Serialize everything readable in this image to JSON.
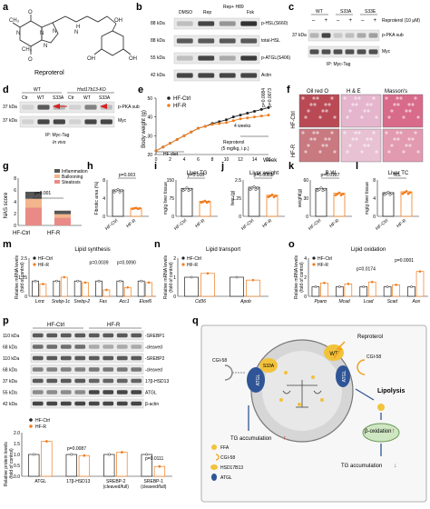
{
  "panel_letters": [
    "a",
    "b",
    "c",
    "d",
    "e",
    "f",
    "g",
    "h",
    "i",
    "j",
    "k",
    "l",
    "m",
    "n",
    "o",
    "p",
    "q"
  ],
  "colors": {
    "ctrl": "#222222",
    "treat": "#f07d1e",
    "steatosis": "#e98a86",
    "ballooning": "#f3b58c",
    "inflammation": "#555555",
    "ihc_red": "#c6545f",
    "he_pink": "#e6b7cf",
    "masson": "#d86a8a",
    "cell": "#d6d6d6"
  },
  "panel_a": {
    "compound_name": "Reproterol"
  },
  "panel_b": {
    "conditions": [
      "DMSO",
      "Rep",
      "Rep+\nH89",
      "Fsk"
    ],
    "rows": [
      {
        "kda": "88 kDa",
        "label": "p-HSL(S660)"
      },
      {
        "kda": "88 kDa",
        "label": "total-HSL"
      },
      {
        "kda": "55 kDa",
        "label": "p-ATGL(S406)"
      },
      {
        "kda": "42 kDa",
        "label": "Actin"
      }
    ]
  },
  "panel_c": {
    "groups": [
      "WT",
      "S33A",
      "S33E"
    ],
    "treatment_signs": [
      "–",
      "+",
      "–",
      "+",
      "–",
      "+"
    ],
    "treatment_label": "Reproterol (10 μM)",
    "rows": [
      {
        "kda": "37 kDa",
        "label": "p-PKA sub"
      },
      {
        "kda": "",
        "label": "Myc"
      }
    ],
    "footer": "IP: Myc-Tag"
  },
  "panel_d": {
    "genotypes": [
      "WT",
      "Hsd17b13-KO"
    ],
    "lanes": [
      "Ctr",
      "WT",
      "S33A",
      "Ctr",
      "WT",
      "S33A"
    ],
    "rows": [
      {
        "kda": "37 kDa",
        "label": "p-PKA sub"
      },
      {
        "kda": "37 kDa",
        "label": "Myc"
      }
    ],
    "footer": "IP: Myc-Tag",
    "footer2": "In vivo"
  },
  "panel_e": {
    "ylabel": "Body weight (g)",
    "xlabel": "Week",
    "legend": [
      "HF-Ctrl",
      "HF-R"
    ],
    "pvalues": [
      "p=0.0084",
      "p=0.0073"
    ],
    "annotation_weeks": "4 weeks",
    "annotation_drug": "Reproterol",
    "annotation_dose": "(5 mg/kg, i.p.)",
    "diet_label": "HF diet"
  },
  "panel_f": {
    "columns": [
      "Oil red O",
      "H & E",
      "Masson's"
    ],
    "rows": [
      "HF-Ctrl",
      "HF-R"
    ]
  },
  "panel_g": {
    "ylabel": "NAS score",
    "legend": [
      "Inflammation",
      "Ballooning",
      "Steatosis"
    ],
    "pvalue": "p=0.001",
    "groups": [
      "HF-Ctrl",
      "HF-R"
    ]
  },
  "panel_h": {
    "ylabel": "Fibrotic area (%)",
    "pvalue": "p=0.003",
    "groups": [
      "HF-Ctrl",
      "HF-R"
    ]
  },
  "panel_i": {
    "title": "Liver TG",
    "ylabel": "mg/g liver tissue",
    "pvalue": "p=0.008",
    "groups": [
      "HF-Ctrl",
      "HF-R"
    ]
  },
  "panel_j": {
    "title": "Liver weight",
    "ylabel": "liver (g)",
    "pvalue": "p=0.0083",
    "groups": [
      "HF-Ctrl",
      "HF-R"
    ]
  },
  "panel_k": {
    "title": "B.W.",
    "ylabel": "weight(g)",
    "pvalue": "p=0.0187",
    "groups": [
      "HF-Ctrl",
      "HF-R"
    ]
  },
  "panel_l": {
    "title": "Liver TC",
    "ylabel": "mg/g liver tissue",
    "pvalue": "NS.",
    "groups": [
      "HF-Ctrl",
      "HF-R"
    ]
  },
  "panel_m": {
    "title": "Lipid synthesis",
    "ylabel": "Relative mRNA levels\n(fold of control)",
    "legend": [
      "HF-Ctrl",
      "HF-R"
    ],
    "genes": [
      "Lxrα",
      "Srebp-1c",
      "Srebp-2",
      "Fas",
      "Acc1",
      "Elovl6"
    ],
    "pvalues": [
      "p=0.0039",
      "p=0.0090"
    ]
  },
  "panel_n": {
    "title": "Lipid transport",
    "ylabel": "Relative mRNA levels\n(fold of control)",
    "legend": [
      "HF-Ctrl",
      "HF-R"
    ],
    "genes": [
      "Cd36",
      "Apob"
    ]
  },
  "panel_o": {
    "title": "Lipid oxidation",
    "ylabel": "Relative mRNA levels\n(fold of control)",
    "legend": [
      "HF-Ctrl",
      "HF-R"
    ],
    "genes": [
      "Pparα",
      "Mcad",
      "Lcad",
      "Scad",
      "Aox"
    ],
    "pvalues": [
      "p=0.0174",
      "p=0.0001"
    ]
  },
  "panel_p": {
    "groups": [
      "HF-Ctrl",
      "HF-R"
    ],
    "rows": [
      {
        "kda": "110 kDa",
        "label": "-SREBP1"
      },
      {
        "kda": "68 kDa",
        "label": "-cleaved"
      },
      {
        "kda": "110 kDa",
        "label": "-SREBP2"
      },
      {
        "kda": "68 kDa",
        "label": "-cleaved"
      },
      {
        "kda": "37 kDa",
        "label": "17β-HSD13"
      },
      {
        "kda": "55 kDa",
        "label": "ATGL"
      },
      {
        "kda": "42 kDa",
        "label": "β-actin"
      }
    ],
    "legend": [
      "HF-Ctrl",
      "HF-R"
    ],
    "ylabel": "Relative protein levels\n(fold of control)",
    "categories": [
      "ATGL",
      "17β-HSD13",
      "SREBP-2\n(cleaved/full)",
      "SREBP-1\n(cleaved/full)"
    ],
    "pvalues": [
      "p=0.0087",
      "p=0.0111"
    ]
  },
  "panel_q": {
    "labels": {
      "reproterol": "Reproterol",
      "cgi58_left": "CGI-58",
      "cgi58_right": "CGI-58",
      "atgl_left": "ATGL",
      "s33a": "S33A",
      "wt": "WT",
      "atgl_right": "ATGL",
      "lipolysis": "Lipolysis",
      "tg_up": "TG accumulation",
      "beta_ox": "β-oxidation",
      "tg_down": "TG accumulation",
      "up_arrow": "↑",
      "down_arrow": "↓"
    },
    "legend": [
      "FFA",
      "CGI-58",
      "HSD17B13",
      "ATGL"
    ]
  },
  "chart_data": [
    {
      "type": "line",
      "panel": "e",
      "ylabel": "Body weight (g)",
      "xlabel": "Week",
      "x": [
        0,
        1,
        2,
        3,
        4,
        5,
        6,
        7,
        8,
        9,
        10,
        11,
        12,
        13,
        14,
        15,
        16
      ],
      "xlim": [
        0,
        16
      ],
      "ylim": [
        20,
        50
      ],
      "series": [
        {
          "name": "HF-Ctrl",
          "values": [
            22,
            24,
            26,
            28,
            30,
            32,
            34,
            35,
            36.5,
            37.5,
            38.5,
            40,
            41,
            42,
            43,
            44,
            45
          ]
        },
        {
          "name": "HF-R",
          "values": [
            22,
            24,
            26,
            28,
            30,
            32,
            34,
            35,
            36,
            36.5,
            37,
            38,
            39,
            39.5,
            40,
            40.5,
            41
          ]
        }
      ]
    },
    {
      "type": "bar",
      "panel": "g",
      "stacked": true,
      "ylabel": "NAS score",
      "categories": [
        "HF-Ctrl",
        "HF-R"
      ],
      "ylim": [
        0,
        8
      ],
      "series": [
        {
          "name": "Steatosis",
          "values": [
            3,
            1.3
          ]
        },
        {
          "name": "Ballooning",
          "values": [
            1.5,
            0.6
          ]
        },
        {
          "name": "Inflammation",
          "values": [
            1.2,
            0.6
          ]
        }
      ]
    },
    {
      "type": "bar",
      "panel": "h",
      "ylabel": "Fibrotic area (%)",
      "categories": [
        "HF-Ctrl",
        "HF-R"
      ],
      "ylim": [
        0,
        8
      ],
      "values": [
        5.8,
        1.8
      ]
    },
    {
      "type": "bar",
      "panel": "i",
      "title": "Liver TG",
      "ylabel": "mg/g liver tissue",
      "categories": [
        "HF-Ctrl",
        "HF-R"
      ],
      "ylim": [
        0,
        150
      ],
      "values": [
        115,
        62
      ]
    },
    {
      "type": "bar",
      "panel": "j",
      "title": "Liver weight",
      "ylabel": "liver (g)",
      "categories": [
        "HF-Ctrl",
        "HF-R"
      ],
      "ylim": [
        0,
        2.5
      ],
      "values": [
        2.0,
        1.45
      ]
    },
    {
      "type": "bar",
      "panel": "k",
      "title": "B.W.",
      "ylabel": "weight(g)",
      "categories": [
        "HF-Ctrl",
        "HF-R"
      ],
      "ylim": [
        0,
        60
      ],
      "values": [
        46,
        38
      ]
    },
    {
      "type": "bar",
      "panel": "l",
      "title": "Liver TC",
      "ylabel": "mg/g liver tissue",
      "categories": [
        "HF-Ctrl",
        "HF-R"
      ],
      "ylim": [
        0,
        8
      ],
      "values": [
        5.2,
        5.4
      ]
    },
    {
      "type": "bar",
      "panel": "m",
      "title": "Lipid synthesis",
      "categories": [
        "Lxrα",
        "Srebp-1c",
        "Srebp-2",
        "Fas",
        "Acc1",
        "Elovl6"
      ],
      "ylim": [
        0,
        2.5
      ],
      "series": [
        {
          "name": "HF-Ctrl",
          "values": [
            1,
            1,
            1,
            1,
            1,
            1
          ]
        },
        {
          "name": "HF-R",
          "values": [
            0.8,
            1.25,
            0.9,
            0.42,
            0.58,
            0.9
          ]
        }
      ]
    },
    {
      "type": "bar",
      "panel": "n",
      "title": "Lipid transport",
      "categories": [
        "Cd36",
        "Apob"
      ],
      "ylim": [
        0,
        2.0
      ],
      "series": [
        {
          "name": "HF-Ctrl",
          "values": [
            1,
            1
          ]
        },
        {
          "name": "HF-R",
          "values": [
            1.2,
            0.85
          ]
        }
      ]
    },
    {
      "type": "bar",
      "panel": "o",
      "title": "Lipid oxidation",
      "categories": [
        "Pparα",
        "Mcad",
        "Lcad",
        "Scad",
        "Aox"
      ],
      "ylim": [
        0,
        4
      ],
      "series": [
        {
          "name": "HF-Ctrl",
          "values": [
            1,
            1,
            1,
            1,
            1
          ]
        },
        {
          "name": "HF-R",
          "values": [
            1.4,
            1.3,
            1.5,
            1.2,
            2.6
          ]
        }
      ]
    },
    {
      "type": "bar",
      "panel": "p",
      "categories": [
        "ATGL",
        "17β-HSD13",
        "SREBP-2 (cleaved/full)",
        "SREBP-1 (cleaved/full)"
      ],
      "ylim": [
        0,
        2.0
      ],
      "series": [
        {
          "name": "HF-Ctrl",
          "values": [
            1,
            1,
            1,
            1
          ]
        },
        {
          "name": "HF-R",
          "values": [
            1.6,
            0.95,
            1.1,
            0.45
          ]
        }
      ]
    }
  ]
}
